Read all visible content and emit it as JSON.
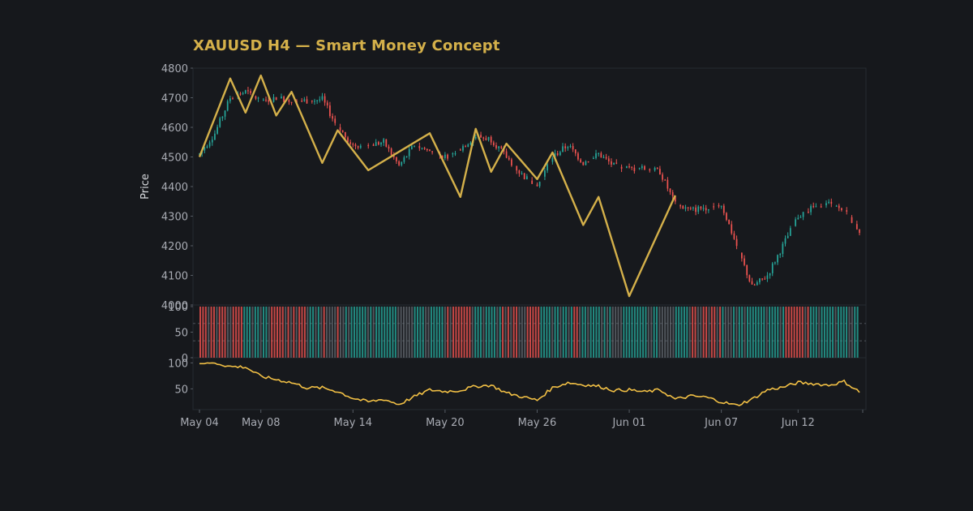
{
  "title": "XAUUSD H4 — Smart Money Concept",
  "colors": {
    "background": "#16181c",
    "title": "#d4b04a",
    "bull": "#26a69a",
    "bear": "#ef5350",
    "zigzag": "#d4b04a",
    "oscillator": "#f2c045",
    "axis_text": "#a8abb3"
  },
  "chart_data": [
    {
      "type": "candlestick",
      "ylabel": "Price",
      "ylim": [
        4000,
        4800
      ],
      "yticks": [
        4000,
        4100,
        4200,
        4300,
        4400,
        4500,
        4600,
        4700,
        4800
      ],
      "xlim": [
        "2025-05-04",
        "2025-06-16"
      ],
      "xticks": [
        {
          "date": "2025-05-04",
          "label": "May 04"
        },
        {
          "date": "2025-05-08",
          "label": "May 08"
        },
        {
          "date": "2025-05-14",
          "label": "May 14"
        },
        {
          "date": "2025-05-20",
          "label": "May 20"
        },
        {
          "date": "2025-05-26",
          "label": "May 26"
        },
        {
          "date": "2025-06-01",
          "label": "Jun 01"
        },
        {
          "date": "2025-06-07",
          "label": "Jun 07"
        },
        {
          "date": "2025-06-12",
          "label": "Jun 12"
        }
      ],
      "close_path": [
        [
          "2025-05-04",
          4510
        ],
        [
          "2025-05-05",
          4580
        ],
        [
          "2025-05-06",
          4700
        ],
        [
          "2025-05-07",
          4720
        ],
        [
          "2025-05-08",
          4690
        ],
        [
          "2025-05-09",
          4700
        ],
        [
          "2025-05-10",
          4690
        ],
        [
          "2025-05-11",
          4690
        ],
        [
          "2025-05-12",
          4695
        ],
        [
          "2025-05-13",
          4600
        ],
        [
          "2025-05-14",
          4540
        ],
        [
          "2025-05-15",
          4540
        ],
        [
          "2025-05-16",
          4550
        ],
        [
          "2025-05-17",
          4470
        ],
        [
          "2025-05-18",
          4540
        ],
        [
          "2025-05-19",
          4520
        ],
        [
          "2025-05-20",
          4500
        ],
        [
          "2025-05-21",
          4530
        ],
        [
          "2025-05-22",
          4570
        ],
        [
          "2025-05-23",
          4560
        ],
        [
          "2025-05-24",
          4500
        ],
        [
          "2025-05-25",
          4440
        ],
        [
          "2025-05-26",
          4400
        ],
        [
          "2025-05-27",
          4500
        ],
        [
          "2025-05-28",
          4540
        ],
        [
          "2025-05-29",
          4480
        ],
        [
          "2025-05-30",
          4510
        ],
        [
          "2025-05-31",
          4470
        ],
        [
          "2025-06-01",
          4460
        ],
        [
          "2025-06-02",
          4460
        ],
        [
          "2025-06-03",
          4450
        ],
        [
          "2025-06-04",
          4340
        ],
        [
          "2025-06-05",
          4320
        ],
        [
          "2025-06-06",
          4330
        ],
        [
          "2025-06-07",
          4340
        ],
        [
          "2025-06-08",
          4200
        ],
        [
          "2025-06-09",
          4060
        ],
        [
          "2025-06-10",
          4100
        ],
        [
          "2025-06-11",
          4200
        ],
        [
          "2025-06-12",
          4300
        ],
        [
          "2025-06-13",
          4330
        ],
        [
          "2025-06-14",
          4340
        ],
        [
          "2025-06-15",
          4320
        ],
        [
          "2025-06-16",
          4250
        ]
      ],
      "zigzag": [
        [
          "2025-05-04",
          4500
        ],
        [
          "2025-05-06",
          4765
        ],
        [
          "2025-05-07",
          4650
        ],
        [
          "2025-05-08",
          4775
        ],
        [
          "2025-05-09",
          4640
        ],
        [
          "2025-05-10",
          4720
        ],
        [
          "2025-05-12",
          4480
        ],
        [
          "2025-05-13",
          4590
        ],
        [
          "2025-05-15",
          4455
        ],
        [
          "2025-05-19",
          4580
        ],
        [
          "2025-05-21",
          4365
        ],
        [
          "2025-05-22",
          4595
        ],
        [
          "2025-05-23",
          4450
        ],
        [
          "2025-05-24",
          4545
        ],
        [
          "2025-05-26",
          4425
        ],
        [
          "2025-05-27",
          4515
        ],
        [
          "2025-05-29",
          4270
        ],
        [
          "2025-05-30",
          4365
        ],
        [
          "2025-06-01",
          4030
        ],
        [
          "2025-06-04",
          4370
        ]
      ]
    },
    {
      "type": "bar",
      "ylim": [
        0,
        100
      ],
      "yticks": [
        0,
        50,
        100
      ],
      "reference_lines": [
        33,
        67
      ]
    },
    {
      "type": "line",
      "ylim": [
        10,
        110
      ],
      "yticks": [
        50,
        100
      ],
      "points": [
        [
          "2025-05-04",
          100
        ],
        [
          "2025-05-05",
          100
        ],
        [
          "2025-05-06",
          93
        ],
        [
          "2025-05-07",
          92
        ],
        [
          "2025-05-08",
          74
        ],
        [
          "2025-05-09",
          68
        ],
        [
          "2025-05-10",
          62
        ],
        [
          "2025-05-11",
          52
        ],
        [
          "2025-05-12",
          52
        ],
        [
          "2025-05-13",
          45
        ],
        [
          "2025-05-14",
          32
        ],
        [
          "2025-05-15",
          25
        ],
        [
          "2025-05-16",
          30
        ],
        [
          "2025-05-17",
          20
        ],
        [
          "2025-05-18",
          35
        ],
        [
          "2025-05-19",
          48
        ],
        [
          "2025-05-20",
          45
        ],
        [
          "2025-05-21",
          47
        ],
        [
          "2025-05-22",
          55
        ],
        [
          "2025-05-23",
          57
        ],
        [
          "2025-05-24",
          42
        ],
        [
          "2025-05-25",
          35
        ],
        [
          "2025-05-26",
          28
        ],
        [
          "2025-05-27",
          52
        ],
        [
          "2025-05-28",
          62
        ],
        [
          "2025-05-29",
          58
        ],
        [
          "2025-05-30",
          55
        ],
        [
          "2025-05-31",
          47
        ],
        [
          "2025-06-01",
          48
        ],
        [
          "2025-06-02",
          44
        ],
        [
          "2025-06-03",
          48
        ],
        [
          "2025-06-04",
          30
        ],
        [
          "2025-06-05",
          36
        ],
        [
          "2025-06-06",
          34
        ],
        [
          "2025-06-07",
          25
        ],
        [
          "2025-06-08",
          18
        ],
        [
          "2025-06-09",
          30
        ],
        [
          "2025-06-10",
          48
        ],
        [
          "2025-06-11",
          53
        ],
        [
          "2025-06-12",
          62
        ],
        [
          "2025-06-13",
          60
        ],
        [
          "2025-06-14",
          57
        ],
        [
          "2025-06-15",
          64
        ],
        [
          "2025-06-16",
          44
        ]
      ]
    }
  ]
}
